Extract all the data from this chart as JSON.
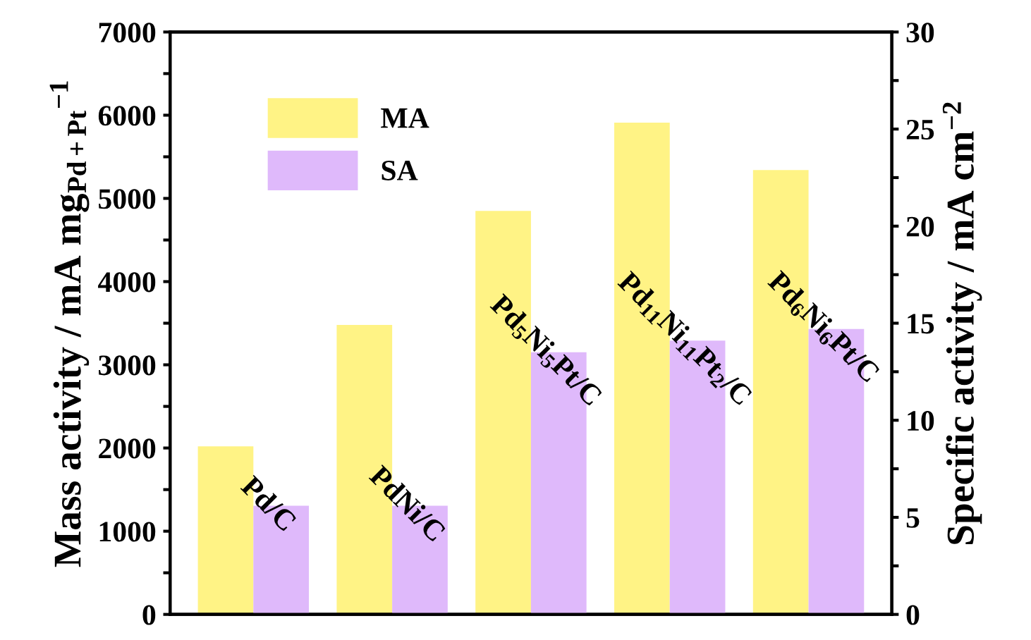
{
  "chart_data": {
    "type": "bar",
    "categories": [
      "Pd/C",
      "PdNi/C",
      "Pd$_{5}$Ni$_{5}$Pt/C",
      "Pd$_{11}$Ni$_{11}$Pt$_{2}$/C",
      "Pd$_{6}$Ni$_{6}$Pt/C"
    ],
    "series": [
      {
        "name": "MA",
        "color": "#fff385",
        "values": [
          2020,
          3480,
          4850,
          5910,
          5340
        ]
      },
      {
        "name": "SA",
        "color": "#dfb9fb",
        "axis": "y2",
        "values": [
          5.6,
          5.6,
          13.5,
          14.1,
          14.7
        ]
      }
    ],
    "ylabel": "Mass activity / mA mg$_{Pd+Pt}$$^{−1}$",
    "y2label": "Specific activity / mA cm$^{−2}$",
    "ylim": [
      0,
      7000
    ],
    "yticks": [
      0,
      {
        "value": 500,
        "label": null
      },
      1000,
      {
        "value": 1500,
        "label": null
      },
      2000,
      {
        "value": 2500,
        "label": null
      },
      3000,
      {
        "value": 3500,
        "label": null
      },
      4000,
      {
        "value": 4500,
        "label": null
      },
      5000,
      {
        "value": 5500,
        "label": null
      },
      6000,
      {
        "value": 6500,
        "label": null
      },
      7000
    ],
    "y2lim": [
      0,
      30
    ],
    "y2ticks": [
      0,
      {
        "value": 2.5,
        "label": null
      },
      5,
      {
        "value": 7.5,
        "label": null
      },
      10,
      {
        "value": 12.5,
        "label": null
      },
      15,
      {
        "value": 17.5,
        "label": null
      },
      20,
      {
        "value": 22.5,
        "label": null
      },
      25,
      {
        "value": 27.5,
        "label": null
      },
      30
    ],
    "legend": "top left",
    "grid": false
  }
}
